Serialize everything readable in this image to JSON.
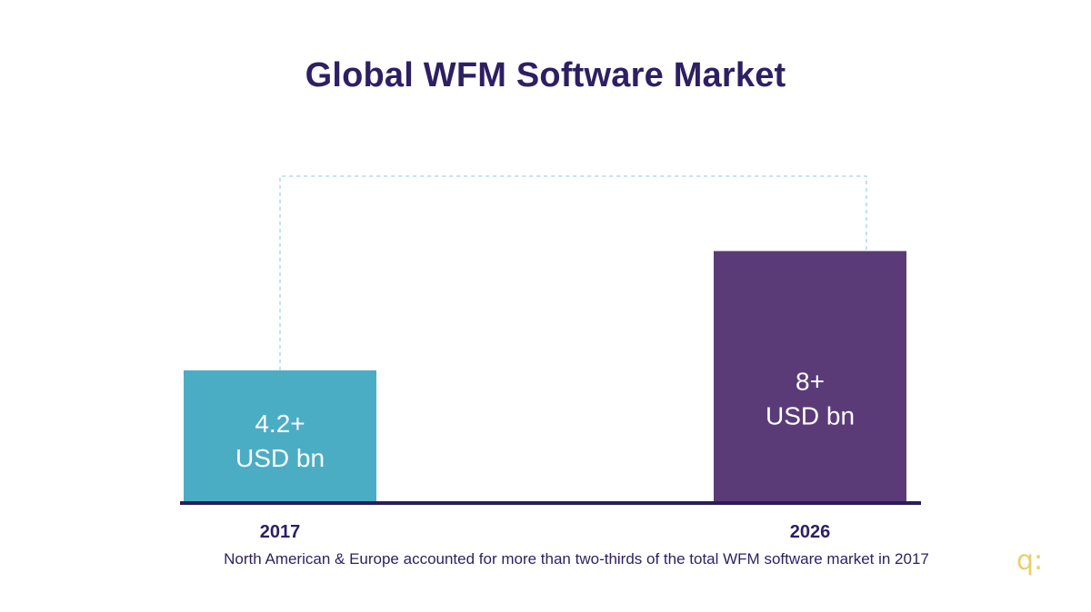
{
  "chart_data": {
    "type": "bar",
    "title": "Global WFM Software Market",
    "categories": [
      "2017",
      "2026"
    ],
    "values": [
      4.2,
      8
    ],
    "value_labels": [
      {
        "line1": "4.2+",
        "line2": "USD bn"
      },
      {
        "line1": "8+",
        "line2": "USD bn"
      }
    ],
    "colors": [
      "#4badc4",
      "#5b3b77"
    ],
    "ylim": [
      0,
      9.2
    ],
    "grid": false,
    "legend": "none",
    "annotation": "North American & Europe accounted for more than two-thirds of the total WFM software market in 2017"
  },
  "brand": {
    "mark": "q:",
    "color": "#e9cf6b"
  },
  "colors": {
    "title": "#2e1f63",
    "axis": "#2a1c5c",
    "connector": "#9fd3e6"
  }
}
